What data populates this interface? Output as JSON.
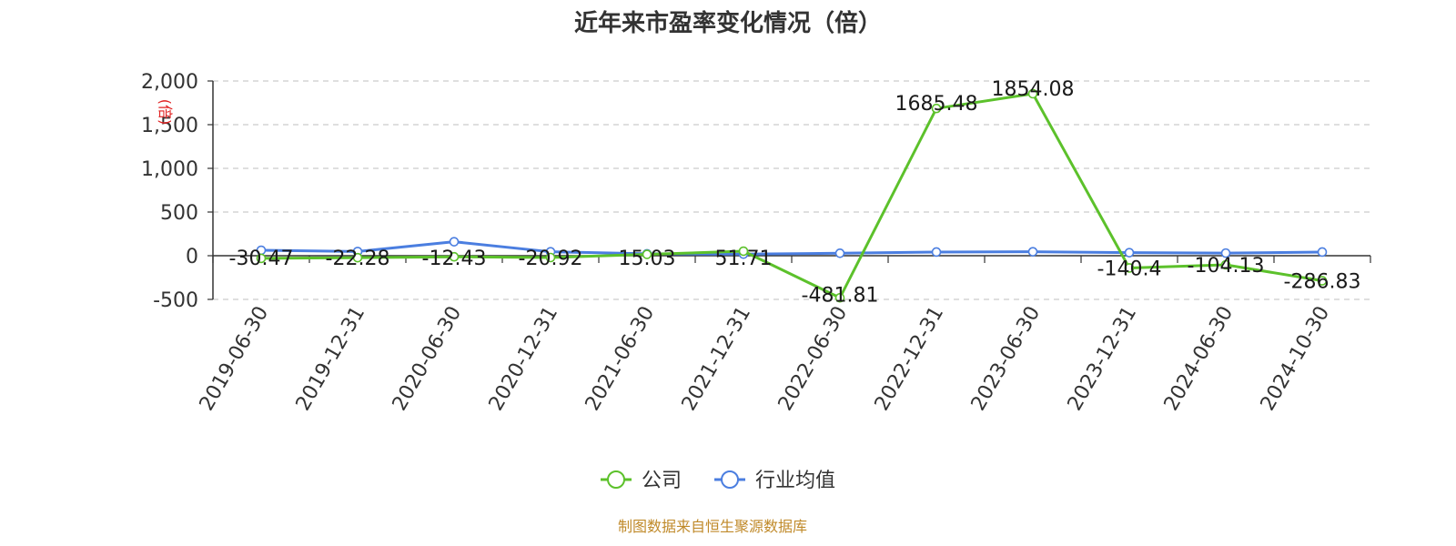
{
  "chart_data": {
    "type": "line",
    "title": "近年来市盈率变化情况（倍）",
    "ylabel": "(倍)",
    "categories": [
      "2019-06-30",
      "2019-12-31",
      "2020-06-30",
      "2020-12-31",
      "2021-06-30",
      "2021-12-31",
      "2022-06-30",
      "2022-12-31",
      "2023-06-30",
      "2023-12-31",
      "2024-06-30",
      "2024-10-30"
    ],
    "ylim": [
      -500,
      2000
    ],
    "yticks": [
      -500,
      0,
      500,
      1000,
      1500,
      2000
    ],
    "ytick_labels": [
      "-500",
      "0",
      "500",
      "1,000",
      "1,500",
      "2,000"
    ],
    "grid": true,
    "legend_position": "bottom-center",
    "series": [
      {
        "name": "公司",
        "color": "#5cc12b",
        "values": [
          -30.47,
          -22.28,
          -12.43,
          -20.92,
          15.03,
          51.71,
          -481.81,
          1685.48,
          1854.08,
          -140.4,
          -104.13,
          -286.83
        ],
        "labels": [
          "-30.47",
          "-22.28",
          "-12.43",
          "-20.92",
          "15.03",
          "51.71",
          "-481.81",
          "1685.48",
          "1854.08",
          "-140.4",
          "-104.13",
          "-286.83"
        ]
      },
      {
        "name": "行业均值",
        "color": "#4b7ee0",
        "values": [
          62,
          48,
          160,
          45,
          22,
          18,
          28,
          42,
          45,
          35,
          30,
          42
        ]
      }
    ]
  },
  "source_text": "制图数据来自恒生聚源数据库",
  "source_color": "#c08a2a",
  "unit_color": "#e02020"
}
